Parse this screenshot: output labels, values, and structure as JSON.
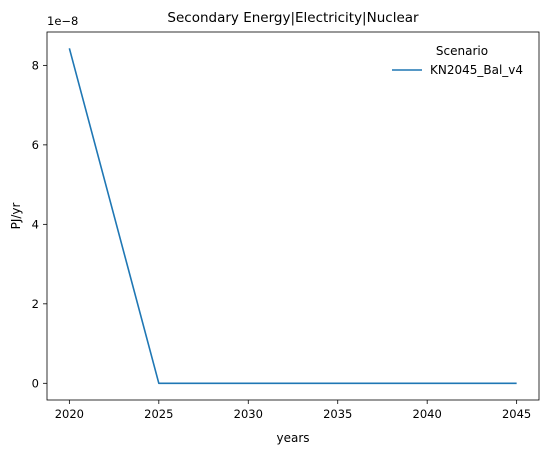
{
  "chart_data": {
    "type": "line",
    "title": "Secondary Energy|Electricity|Nuclear",
    "xlabel": "years",
    "ylabel": "PJ/yr",
    "y_offset_label": "1e−8",
    "y_scale_factor": 1e-08,
    "x": [
      2020,
      2025,
      2030,
      2035,
      2040,
      2045
    ],
    "x_ticks": [
      "2020",
      "2025",
      "2030",
      "2035",
      "2040",
      "2045"
    ],
    "y_ticks": [
      "0",
      "2",
      "4",
      "6",
      "8"
    ],
    "xlim": [
      2018.75,
      2046.25
    ],
    "ylim": [
      -0.42,
      8.84
    ],
    "grid": false,
    "legend": {
      "title": "Scenario",
      "placement": "top-right"
    },
    "series": [
      {
        "name": "KN2045_Bal_v4",
        "color": "#1f77b4",
        "values": [
          8.43,
          0,
          0,
          0,
          0,
          0
        ]
      }
    ]
  }
}
